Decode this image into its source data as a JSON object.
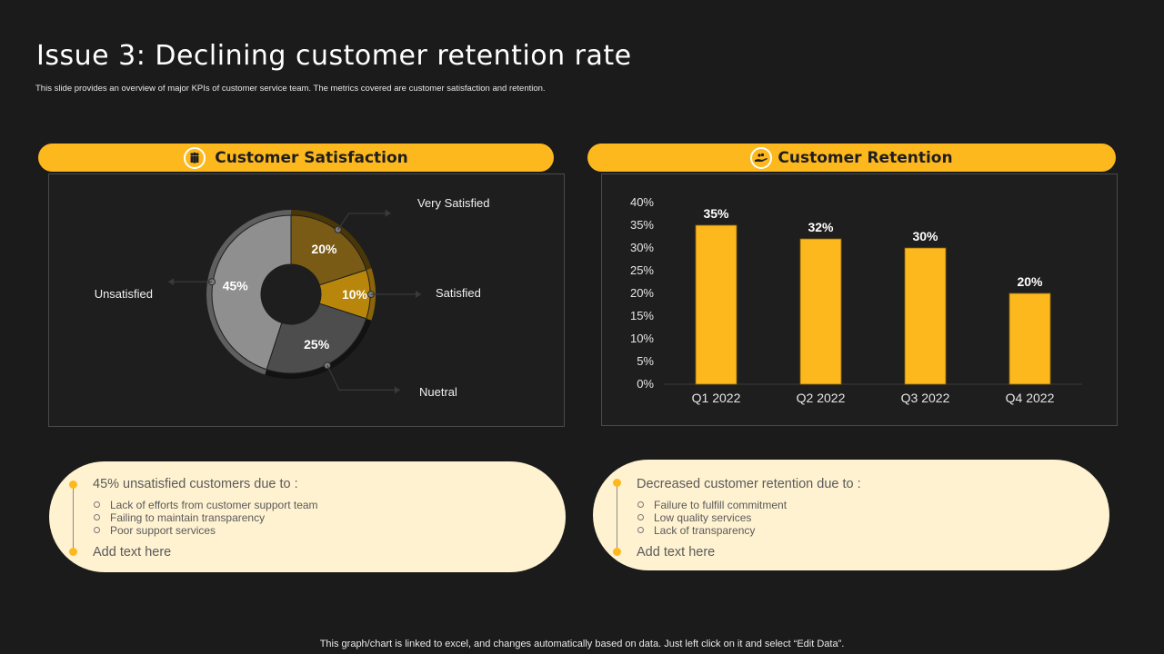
{
  "page": {
    "title": "Issue 3: Declining customer retention rate",
    "subtitle": "This slide provides an overview of major KPIs of customer service team. The metrics covered are customer satisfaction and retention.",
    "footer": "This graph/chart is linked to excel, and changes automatically based on data. Just left click on it and select “Edit Data”."
  },
  "satisfaction": {
    "header": "Customer Satisfaction",
    "icon": "people-icon",
    "note": {
      "heading": "45% unsatisfied customers due to :",
      "bullets": [
        "Lack of efforts from customer support team",
        "Failing to maintain transparency",
        "Poor support services"
      ],
      "add_text": "Add text here"
    }
  },
  "retention": {
    "header": "Customer Retention",
    "icon": "hand-coins-icon",
    "note": {
      "heading": "Decreased customer retention due to :",
      "bullets": [
        "Failure to fulfill commitment",
        "Low quality services",
        "Lack of transparency"
      ],
      "add_text": "Add text here"
    }
  },
  "colors": {
    "accent": "#fdb81e",
    "background": "#1b1b1b",
    "note_bg": "#fff2d1"
  },
  "chart_data": [
    {
      "type": "pie",
      "variant": "donut",
      "slices": [
        {
          "name": "Very Satisfied",
          "value": 20,
          "label": "20%",
          "color": "#7a5b16"
        },
        {
          "name": "Satisfied",
          "value": 10,
          "label": "10%",
          "color": "#b8860b"
        },
        {
          "name": "Nuetral",
          "value": 25,
          "label": "25%",
          "color": "#4d4d4d"
        },
        {
          "name": "Unsatisfied",
          "value": 45,
          "label": "45%",
          "color": "#8f8f8f"
        }
      ]
    },
    {
      "type": "bar",
      "categories": [
        "Q1 2022",
        "Q2 2022",
        "Q3 2022",
        "Q4 2022"
      ],
      "values": [
        35,
        32,
        30,
        20
      ],
      "data_labels": [
        "35%",
        "32%",
        "30%",
        "20%"
      ],
      "ylim": [
        0,
        40
      ],
      "yticks": [
        "0%",
        "5%",
        "10%",
        "15%",
        "20%",
        "25%",
        "30%",
        "35%",
        "40%"
      ],
      "color": "#fdb81e",
      "grid": false
    }
  ]
}
